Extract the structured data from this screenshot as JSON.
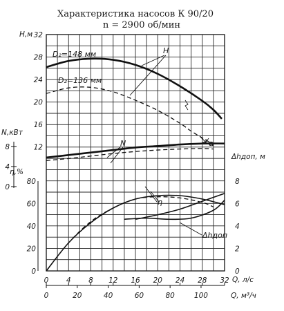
{
  "title": "Характеристика насосов К 90/20",
  "subtitle": "n = 2900 об/мин",
  "chart_data": {
    "type": "line",
    "x_axes": [
      {
        "label": "Q, л/с",
        "range": [
          0,
          32
        ],
        "ticks": [
          "0",
          "4",
          "8",
          "12",
          "16",
          "20",
          "24",
          "28",
          "32"
        ]
      },
      {
        "label": "Q, м³/ч",
        "range": [
          0,
          115.2
        ],
        "ticks": [
          "0",
          "20",
          "40",
          "60",
          "80",
          "100"
        ]
      }
    ],
    "y_axes": {
      "H": {
        "label": "H,м",
        "range": [
          12,
          32
        ],
        "ticks": [
          "32",
          "28",
          "24",
          "20",
          "16",
          "12"
        ]
      },
      "N": {
        "label": "N,кВт",
        "ticks": [
          "8",
          "4",
          "0"
        ]
      },
      "eta": {
        "label": "η,%",
        "ticks": [
          "80",
          "60",
          "40",
          "20",
          "0"
        ]
      },
      "dh": {
        "label": "Δhдоп, м",
        "ticks": [
          "8",
          "6",
          "4",
          "2",
          "0"
        ]
      }
    },
    "grid": true,
    "series": [
      {
        "name": "H",
        "annotation": "D₂=148 мм",
        "style": "solid",
        "x": [
          0,
          4,
          8,
          12,
          16,
          20,
          24,
          28,
          30,
          31.5
        ],
        "y": [
          26.2,
          27.3,
          27.7,
          27.5,
          26.6,
          25.0,
          22.8,
          20.2,
          18.6,
          17.0
        ]
      },
      {
        "name": "H",
        "annotation": "D₂=136 мм",
        "style": "dashed",
        "x": [
          0,
          4,
          8,
          12,
          16,
          20,
          24,
          26,
          28,
          30
        ],
        "y": [
          21.5,
          22.5,
          22.6,
          21.8,
          20.3,
          18.5,
          16.2,
          14.8,
          13.6,
          12.4
        ]
      },
      {
        "name": "N",
        "annotation": "D₂=148 мм",
        "style": "solid",
        "x": [
          0,
          4,
          8,
          12,
          16,
          20,
          24,
          28,
          32
        ],
        "y": [
          5.8,
          6.3,
          6.8,
          7.3,
          7.8,
          8.1,
          8.4,
          8.6,
          8.6
        ]
      },
      {
        "name": "N",
        "annotation": "D₂=136 мм",
        "style": "dashed",
        "x": [
          0,
          4,
          8,
          12,
          16,
          20,
          24,
          28,
          30
        ],
        "y": [
          5.2,
          5.6,
          6.1,
          6.6,
          7.0,
          7.3,
          7.5,
          7.6,
          7.5
        ]
      },
      {
        "name": "η",
        "annotation": "D₂=148 мм",
        "style": "solid",
        "x": [
          0,
          4,
          8,
          12,
          16,
          20,
          24,
          28,
          32
        ],
        "y": [
          0,
          25,
          43,
          56,
          64,
          67,
          67,
          64,
          59
        ]
      },
      {
        "name": "η",
        "annotation": "D₂=136 мм",
        "style": "dashed",
        "x": [
          0,
          4,
          8,
          12,
          16,
          20,
          24,
          28,
          30
        ],
        "y": [
          0,
          25,
          44,
          56,
          64,
          66,
          65,
          61,
          57
        ]
      },
      {
        "name": "Δhдоп",
        "style": "solid",
        "x": [
          14,
          18,
          22,
          26,
          30,
          32
        ],
        "y": [
          4.6,
          4.7,
          4.6,
          4.7,
          5.4,
          6.3
        ]
      },
      {
        "name": "Δhдоп",
        "style": "solid",
        "x": [
          16,
          20,
          24,
          28,
          32
        ],
        "y": [
          4.6,
          5.0,
          5.5,
          6.2,
          6.9
        ]
      }
    ],
    "annotations": [
      "H",
      "D₂=148 мм",
      "D₂=136 мм",
      "N",
      "η",
      "Δhдоп",
      "а"
    ]
  }
}
